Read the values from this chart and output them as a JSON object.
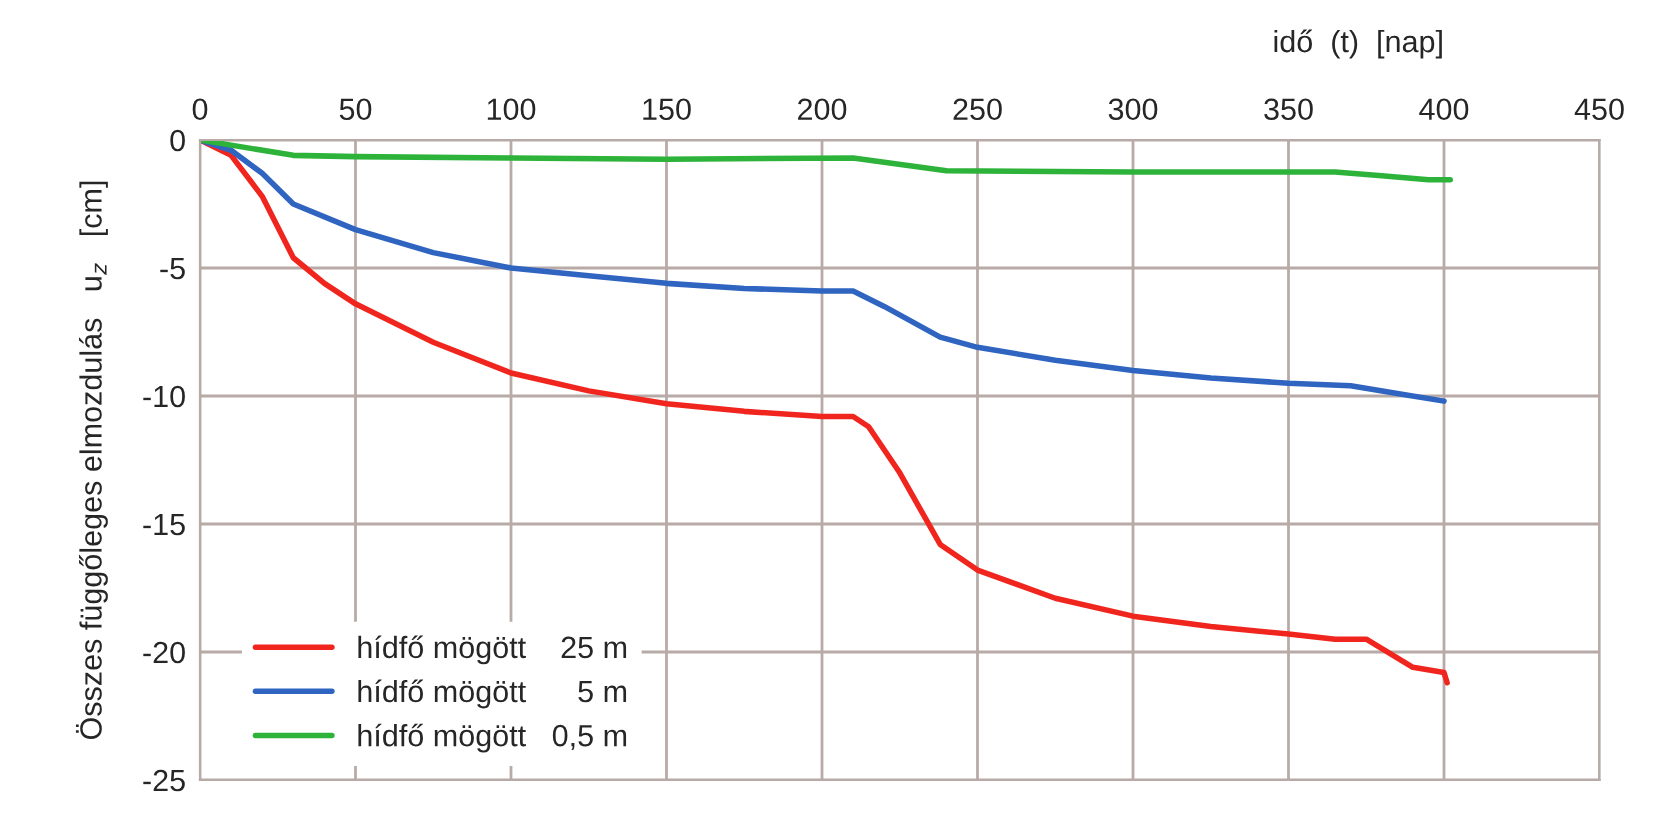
{
  "chart_data": {
    "type": "line",
    "xlabel": "idő  (t)  [nap]",
    "ylabel": "Összes függőleges elmozdulás   u$_{z}$   [cm]",
    "xlim": [
      0,
      450
    ],
    "xticks": [
      0,
      50,
      100,
      150,
      200,
      250,
      300,
      350,
      400,
      450
    ],
    "ylim": [
      -25,
      0
    ],
    "yticks": [
      -25,
      -20,
      -15,
      -10,
      -5,
      0
    ],
    "grid": true,
    "legend": "bottom left",
    "line_style": "solid",
    "marker": "none",
    "series": [
      {
        "name": "hídfő mögött    25 m",
        "color": "#f0261e",
        "x": [
          0,
          10,
          20,
          30,
          40,
          50,
          75,
          100,
          125,
          150,
          175,
          200,
          210,
          215,
          225,
          238,
          250,
          275,
          300,
          325,
          350,
          365,
          375,
          390,
          400,
          401
        ],
        "values": [
          0,
          -0.6,
          -2.2,
          -4.6,
          -5.6,
          -6.4,
          -7.9,
          -9.1,
          -9.8,
          -10.3,
          -10.6,
          -10.8,
          -10.8,
          -11.2,
          -13,
          -15.8,
          -16.8,
          -17.9,
          -18.6,
          -19.0,
          -19.3,
          -19.5,
          -19.5,
          -20.6,
          -20.8,
          -21.2
        ]
      },
      {
        "name": "hídfő mögött      5 m",
        "color": "#2f64c0",
        "x": [
          0,
          10,
          20,
          30,
          50,
          75,
          100,
          125,
          150,
          175,
          200,
          210,
          220,
          238,
          250,
          275,
          300,
          325,
          350,
          370,
          385,
          400
        ],
        "values": [
          0,
          -0.4,
          -1.3,
          -2.5,
          -3.5,
          -4.4,
          -5.0,
          -5.3,
          -5.6,
          -5.8,
          -5.9,
          -5.9,
          -6.5,
          -7.7,
          -8.1,
          -8.6,
          -9.0,
          -9.3,
          -9.5,
          -9.6,
          -9.9,
          -10.2
        ]
      },
      {
        "name": "hídfő mögött   0,5 m",
        "color": "#2db33a",
        "x": [
          0,
          10,
          30,
          50,
          100,
          150,
          210,
          240,
          300,
          365,
          380,
          395,
          402
        ],
        "values": [
          0,
          -0.2,
          -0.6,
          -0.65,
          -0.7,
          -0.75,
          -0.7,
          -1.2,
          -1.25,
          -1.25,
          -1.4,
          -1.55,
          -1.55
        ]
      }
    ]
  }
}
